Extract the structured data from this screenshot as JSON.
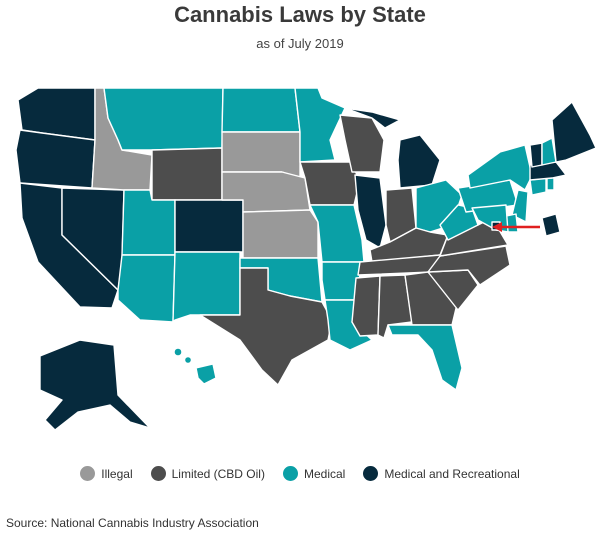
{
  "title": "Cannabis Laws by State",
  "subtitle": "as of July 2019",
  "colors": {
    "illegal": "#999999",
    "cbd": "#4d4d4d",
    "medical": "#0aa0a6",
    "recreational": "#062a3d",
    "arrow": "#e02020"
  },
  "legend": [
    {
      "key": "illegal",
      "label": "Illegal"
    },
    {
      "key": "cbd",
      "label": "Limited (CBD Oil)"
    },
    {
      "key": "medical",
      "label": "Medical"
    },
    {
      "key": "recreational",
      "label": "Medical and Recreational"
    }
  ],
  "states": {
    "WA": "recreational",
    "OR": "recreational",
    "CA": "recreational",
    "NV": "recreational",
    "ID": "illegal",
    "MT": "medical",
    "WY": "cbd",
    "UT": "medical",
    "AZ": "medical",
    "CO": "recreational",
    "NM": "medical",
    "ND": "medical",
    "SD": "illegal",
    "NE": "illegal",
    "KS": "illegal",
    "OK": "medical",
    "TX": "cbd",
    "MN": "medical",
    "IA": "cbd",
    "MO": "medical",
    "AR": "medical",
    "LA": "medical",
    "WI": "cbd",
    "IL": "recreational",
    "MI": "recreational",
    "IN": "cbd",
    "OH": "medical",
    "KY": "cbd",
    "TN": "cbd",
    "MS": "cbd",
    "AL": "cbd",
    "GA": "cbd",
    "FL": "medical",
    "SC": "cbd",
    "NC": "cbd",
    "VA": "cbd",
    "WV": "medical",
    "PA": "medical",
    "NY": "medical",
    "VT": "recreational",
    "NH": "medical",
    "ME": "recreational",
    "MA": "recreational",
    "CT": "medical",
    "RI": "medical",
    "NJ": "medical",
    "DE": "medical",
    "MD": "medical",
    "DC": "recreational",
    "AK": "recreational",
    "HI": "medical"
  },
  "source": "Source: National Cannabis Industry Association"
}
